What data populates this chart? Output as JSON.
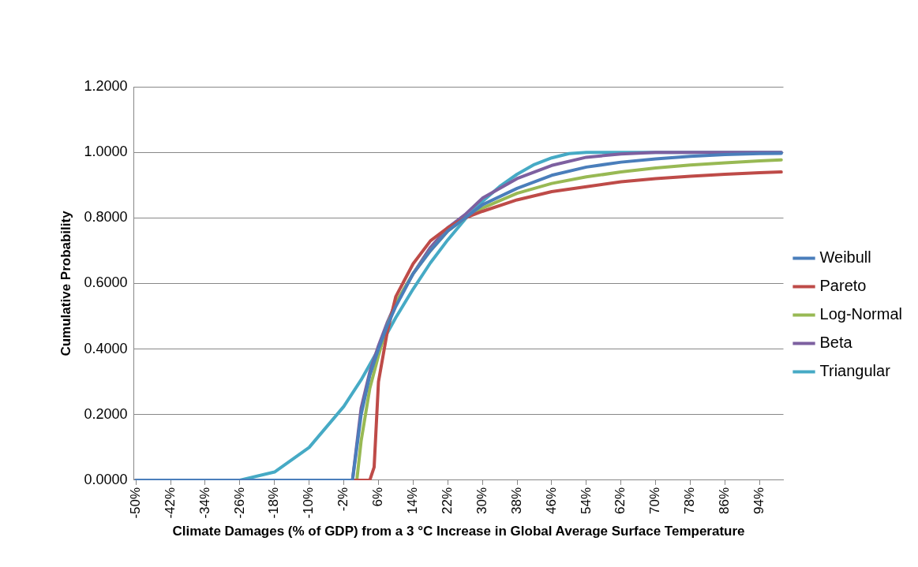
{
  "chart_data": {
    "type": "line",
    "xlabel": "Climate Damages (% of GDP) from a 3 °C Increase in Global Average Surface Temperature",
    "ylabel": "Cumulative Probability",
    "xlim": [
      -50.5,
      99.5
    ],
    "xticks": [
      {
        "value": -50,
        "label": "-50%"
      },
      {
        "value": -42,
        "label": "-42%"
      },
      {
        "value": -34,
        "label": "-34%"
      },
      {
        "value": -26,
        "label": "-26%"
      },
      {
        "value": -18,
        "label": "-18%"
      },
      {
        "value": -10,
        "label": "-10%"
      },
      {
        "value": -2,
        "label": "-2%"
      },
      {
        "value": 6,
        "label": "6%"
      },
      {
        "value": 14,
        "label": "14%"
      },
      {
        "value": 22,
        "label": "22%"
      },
      {
        "value": 30,
        "label": "30%"
      },
      {
        "value": 38,
        "label": "38%"
      },
      {
        "value": 46,
        "label": "46%"
      },
      {
        "value": 54,
        "label": "54%"
      },
      {
        "value": 62,
        "label": "62%"
      },
      {
        "value": 70,
        "label": "70%"
      },
      {
        "value": 78,
        "label": "78%"
      },
      {
        "value": 86,
        "label": "86%"
      },
      {
        "value": 94,
        "label": "94%"
      }
    ],
    "ylim": [
      0,
      1.2
    ],
    "yticks": [
      {
        "value": 0,
        "label": "0.0000"
      },
      {
        "value": 0.2,
        "label": "0.2000"
      },
      {
        "value": 0.4,
        "label": "0.4000"
      },
      {
        "value": 0.6,
        "label": "0.6000"
      },
      {
        "value": 0.8,
        "label": "0.8000"
      },
      {
        "value": 1,
        "label": "1.0000"
      },
      {
        "value": 1.2,
        "label": "1.2000"
      }
    ],
    "grid": "y",
    "legend": "right",
    "marker": "none",
    "line_style": "solid",
    "series": [
      {
        "name": "Weibull",
        "color": "#4a7ebb",
        "x": [
          -50,
          0,
          2,
          4,
          6,
          8,
          10,
          14,
          18,
          22,
          26,
          30,
          38,
          46,
          54,
          62,
          70,
          78,
          86,
          94,
          99
        ],
        "values": [
          0,
          0,
          0.2,
          0.32,
          0.4,
          0.47,
          0.53,
          0.63,
          0.7,
          0.76,
          0.8,
          0.84,
          0.89,
          0.93,
          0.955,
          0.97,
          0.98,
          0.988,
          0.993,
          0.996,
          0.997
        ]
      },
      {
        "name": "Pareto",
        "color": "#be4b48",
        "x": [
          -50,
          4,
          5,
          6,
          8,
          10,
          14,
          18,
          22,
          26,
          30,
          38,
          46,
          54,
          62,
          70,
          78,
          86,
          94,
          99
        ],
        "values": [
          0,
          0,
          0.04,
          0.3,
          0.45,
          0.56,
          0.66,
          0.73,
          0.77,
          0.8,
          0.82,
          0.855,
          0.88,
          0.895,
          0.91,
          0.92,
          0.927,
          0.933,
          0.938,
          0.94
        ]
      },
      {
        "name": "Log-Normal",
        "color": "#98b954",
        "x": [
          -50,
          1,
          2,
          4,
          6,
          8,
          10,
          14,
          18,
          22,
          26,
          30,
          38,
          46,
          54,
          62,
          70,
          78,
          86,
          94,
          99
        ],
        "values": [
          0,
          0,
          0.12,
          0.28,
          0.38,
          0.47,
          0.54,
          0.63,
          0.7,
          0.76,
          0.8,
          0.83,
          0.875,
          0.905,
          0.925,
          0.94,
          0.952,
          0.961,
          0.968,
          0.974,
          0.977
        ]
      },
      {
        "name": "Beta",
        "color": "#7d60a0",
        "x": [
          -50,
          0,
          2,
          4,
          6,
          8,
          10,
          14,
          18,
          22,
          26,
          30,
          38,
          46,
          54,
          62,
          70,
          99
        ],
        "values": [
          0,
          0,
          0.22,
          0.33,
          0.41,
          0.48,
          0.54,
          0.63,
          0.71,
          0.77,
          0.81,
          0.86,
          0.92,
          0.96,
          0.985,
          0.995,
          1,
          1
        ]
      },
      {
        "name": "Triangular",
        "color": "#46aac5",
        "x": [
          -50,
          -26,
          -18,
          -10,
          -2,
          2,
          6,
          10,
          14,
          18,
          22,
          26,
          30,
          34,
          38,
          42,
          46,
          50,
          54,
          99
        ],
        "values": [
          0,
          0,
          0.025,
          0.1,
          0.225,
          0.306,
          0.4,
          0.496,
          0.583,
          0.663,
          0.733,
          0.796,
          0.85,
          0.896,
          0.933,
          0.963,
          0.983,
          0.996,
          1,
          1
        ]
      }
    ]
  }
}
